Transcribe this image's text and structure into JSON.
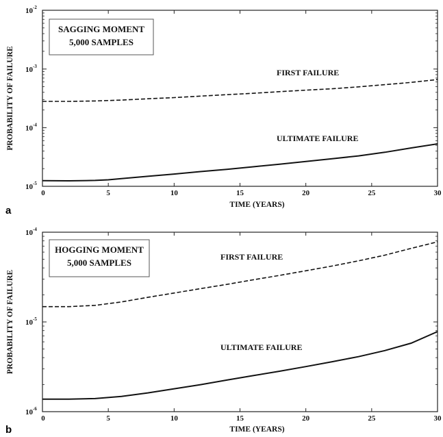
{
  "chart_data": [
    {
      "type": "line",
      "panel_label": "a",
      "xlabel": "TIME (YEARS)",
      "ylabel": "PROBABILITY OF FAILURE",
      "x_ticks": [
        "0",
        "5",
        "10",
        "15",
        "20",
        "25",
        "30"
      ],
      "y_ticks": [
        {
          "base": "10",
          "exp": "-5"
        },
        {
          "base": "10",
          "exp": "-4"
        },
        {
          "base": "10",
          "exp": "-3"
        },
        {
          "base": "10",
          "exp": "-2"
        }
      ],
      "xlim": [
        0,
        30
      ],
      "ylim": [
        1e-05,
        0.01
      ],
      "yscale": "log",
      "box_lines": [
        "SAGGING MOMENT",
        "5,000  SAMPLES"
      ],
      "series": [
        {
          "name": "FIRST FAILURE",
          "style": "dashed",
          "x": [
            0,
            2,
            4,
            6,
            8,
            10,
            12,
            14,
            16,
            18,
            20,
            22,
            24,
            26,
            28,
            30
          ],
          "y": [
            0.00028,
            0.00028,
            0.000285,
            0.000295,
            0.00031,
            0.000325,
            0.000345,
            0.000365,
            0.000385,
            0.00041,
            0.000435,
            0.00046,
            0.000495,
            0.00054,
            0.00059,
            0.00066
          ]
        },
        {
          "name": "ULTIMATE FAILURE",
          "style": "solid",
          "x": [
            0,
            2,
            4,
            5,
            6,
            8,
            10,
            12,
            14,
            16,
            18,
            20,
            22,
            24,
            26,
            28,
            30
          ],
          "y": [
            1.25e-05,
            1.24e-05,
            1.26e-05,
            1.29e-05,
            1.35e-05,
            1.48e-05,
            1.62e-05,
            1.78e-05,
            1.95e-05,
            2.15e-05,
            2.38e-05,
            2.65e-05,
            2.95e-05,
            3.3e-05,
            3.8e-05,
            4.5e-05,
            5.3e-05
          ]
        }
      ]
    },
    {
      "type": "line",
      "panel_label": "b",
      "xlabel": "TIME (YEARS)",
      "ylabel": "PROBABILITY OF FAILURE",
      "x_ticks": [
        "0",
        "5",
        "10",
        "15",
        "20",
        "25",
        "30"
      ],
      "y_ticks": [
        {
          "base": "10",
          "exp": "-6"
        },
        {
          "base": "10",
          "exp": "-5"
        },
        {
          "base": "10",
          "exp": "-4"
        }
      ],
      "xlim": [
        0,
        30
      ],
      "ylim": [
        1e-06,
        0.0001
      ],
      "yscale": "log",
      "box_lines": [
        "HOGGING MOMENT",
        "5,000  SAMPLES"
      ],
      "series": [
        {
          "name": "FIRST FAILURE",
          "style": "dashed",
          "x": [
            0,
            2,
            4,
            6,
            8,
            10,
            12,
            14,
            16,
            18,
            20,
            22,
            24,
            26,
            28,
            30
          ],
          "y": [
            1.48e-05,
            1.48e-05,
            1.53e-05,
            1.67e-05,
            1.88e-05,
            2.1e-05,
            2.35e-05,
            2.62e-05,
            2.95e-05,
            3.3e-05,
            3.72e-05,
            4.2e-05,
            4.8e-05,
            5.55e-05,
            6.6e-05,
            7.8e-05
          ]
        },
        {
          "name": "ULTIMATE FAILURE",
          "style": "solid",
          "x": [
            0,
            2,
            4,
            6,
            8,
            10,
            12,
            14,
            16,
            18,
            20,
            22,
            24,
            26,
            28,
            30
          ],
          "y": [
            1.38e-06,
            1.38e-06,
            1.4e-06,
            1.48e-06,
            1.62e-06,
            1.8e-06,
            2e-06,
            2.25e-06,
            2.52e-06,
            2.82e-06,
            3.18e-06,
            3.6e-06,
            4.1e-06,
            4.8e-06,
            5.8e-06,
            7.8e-06
          ]
        }
      ]
    }
  ]
}
